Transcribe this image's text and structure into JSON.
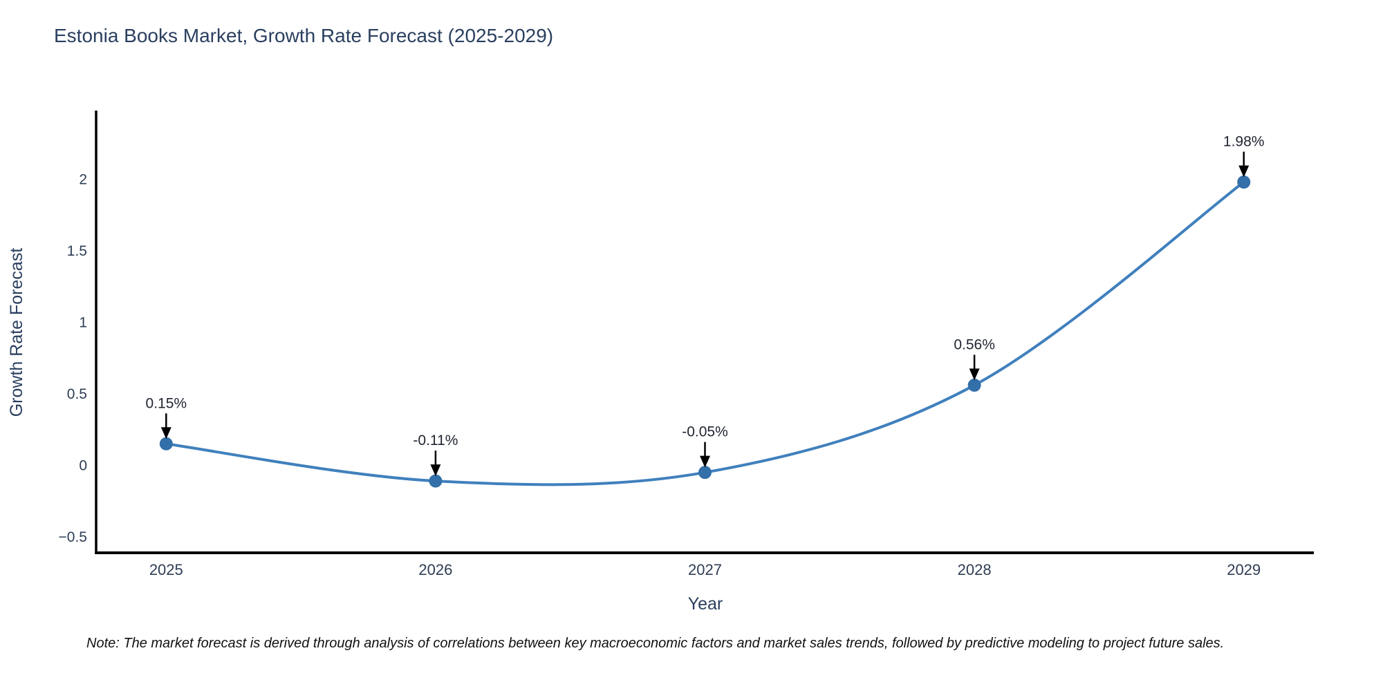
{
  "header": {
    "title": "Estonia Books Market, Growth Rate Forecast (2025-2029)"
  },
  "footnote": {
    "text": "Note: The market forecast is derived through analysis of correlations between key macroeconomic factors and market sales trends, followed by predictive modeling to project future sales."
  },
  "chart_data": {
    "type": "line",
    "title": "Estonia Books Market, Growth Rate Forecast (2025-2029)",
    "xlabel": "Year",
    "ylabel": "Growth Rate Forecast",
    "x": [
      2025,
      2026,
      2027,
      2028,
      2029
    ],
    "series": [
      {
        "name": "Growth Rate Forecast",
        "values": [
          0.15,
          -0.11,
          -0.05,
          0.56,
          1.98
        ]
      }
    ],
    "point_labels": [
      "0.15%",
      "-0.11%",
      "-0.05%",
      "0.56%",
      "1.98%"
    ],
    "xtick_labels": [
      "2025",
      "2026",
      "2027",
      "2028",
      "2029"
    ],
    "ytick_values": [
      2,
      1.5,
      1,
      0.5,
      0,
      -0.5
    ],
    "ytick_labels": [
      "2",
      "1.5",
      "1",
      "0.5",
      "0",
      "−0.5"
    ],
    "xlim": [
      2024.74,
      2029.26
    ],
    "ylim": [
      -0.612,
      2.48
    ],
    "grid": false,
    "legend_position": "none",
    "line_shape": "spline",
    "colors": {
      "line": "#4080bd",
      "marker": "#336fa9",
      "axis": "#000000",
      "tick_text": "#2e3d54",
      "annotation_text": "#1f2430",
      "annotation_arrow": "#000000"
    }
  }
}
